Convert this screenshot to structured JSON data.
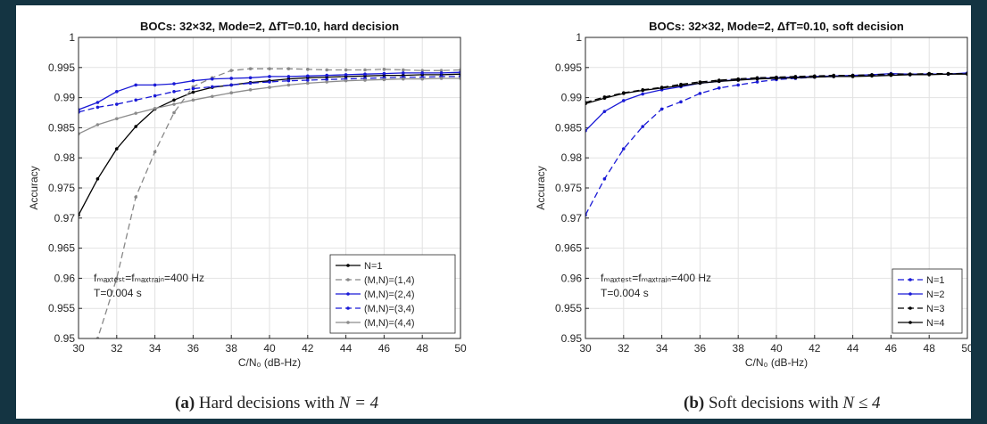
{
  "chart_data": [
    {
      "type": "line",
      "title": "BOCs: 32×32, Mode=2, ΔfT=0.10, hard decision",
      "xlabel": "C/N₀ (dB-Hz)",
      "ylabel": "Accuracy",
      "xlim": [
        30,
        50
      ],
      "ylim": [
        0.95,
        1
      ],
      "xticks": [
        "30",
        "32",
        "34",
        "36",
        "38",
        "40",
        "42",
        "44",
        "46",
        "48",
        "50"
      ],
      "yticks": [
        "0.95",
        "0.955",
        "0.96",
        "0.965",
        "0.97",
        "0.975",
        "0.98",
        "0.985",
        "0.99",
        "0.995",
        "1"
      ],
      "grid": true,
      "legend_position": "bottom-right",
      "annotation_lines": [
        "fₘₐₓₜₑₛₜ=fₘₐₓₜᵣₐᵢₙ=400 Hz",
        "T=0.004 s"
      ],
      "x": [
        30,
        31,
        32,
        33,
        34,
        35,
        36,
        37,
        38,
        39,
        40,
        41,
        42,
        43,
        44,
        45,
        46,
        47,
        48,
        49,
        50
      ],
      "series": [
        {
          "name": "N=1",
          "color": "#000000",
          "dash": "solid",
          "values": [
            0.9705,
            0.9765,
            0.9815,
            0.9852,
            0.9881,
            0.9896,
            0.9909,
            0.9917,
            0.9921,
            0.9925,
            0.9928,
            0.9931,
            0.9933,
            0.9934,
            0.9935,
            0.9936,
            0.9937,
            0.9937,
            0.9938,
            0.9938,
            0.9939
          ]
        },
        {
          "name": "(M,N)=(1,4)",
          "color": "#888888",
          "dash": "dashed",
          "values": [
            0.94,
            0.95,
            0.96,
            0.9735,
            0.981,
            0.9875,
            0.9918,
            0.9933,
            0.9945,
            0.9948,
            0.9948,
            0.9948,
            0.9947,
            0.9946,
            0.9946,
            0.9946,
            0.9947,
            0.9946,
            0.9945,
            0.9945,
            0.9946
          ]
        },
        {
          "name": "(M,N)=(2,4)",
          "color": "#1a1ad6",
          "dash": "solid",
          "values": [
            0.988,
            0.9892,
            0.991,
            0.9921,
            0.9921,
            0.9923,
            0.9928,
            0.9931,
            0.9932,
            0.9933,
            0.9935,
            0.9935,
            0.9936,
            0.9937,
            0.9938,
            0.9939,
            0.994,
            0.9941,
            0.9941,
            0.9941,
            0.9942
          ]
        },
        {
          "name": "(M,N)=(3,4)",
          "color": "#1a1ad6",
          "dash": "dashed",
          "values": [
            0.9876,
            0.9884,
            0.9889,
            0.9896,
            0.9903,
            0.991,
            0.9915,
            0.9918,
            0.9921,
            0.9924,
            0.9926,
            0.9928,
            0.9929,
            0.993,
            0.9931,
            0.9932,
            0.9933,
            0.9934,
            0.9934,
            0.9935,
            0.9935
          ]
        },
        {
          "name": "(M,N)=(4,4)",
          "color": "#8c8c8c",
          "dash": "solid",
          "values": [
            0.984,
            0.9855,
            0.9865,
            0.9874,
            0.9882,
            0.9889,
            0.9896,
            0.9902,
            0.9908,
            0.9913,
            0.9917,
            0.9921,
            0.9924,
            0.9926,
            0.9928,
            0.9929,
            0.993,
            0.9931,
            0.9931,
            0.9932,
            0.9932
          ]
        }
      ]
    },
    {
      "type": "line",
      "title": "BOCs: 32×32, Mode=2, ΔfT=0.10, soft decision",
      "xlabel": "C/N₀ (dB-Hz)",
      "ylabel": "Accuracy",
      "xlim": [
        30,
        50
      ],
      "ylim": [
        0.95,
        1
      ],
      "xticks": [
        "30",
        "32",
        "34",
        "36",
        "38",
        "40",
        "42",
        "44",
        "46",
        "48",
        "50"
      ],
      "yticks": [
        "0.95",
        "0.955",
        "0.96",
        "0.965",
        "0.97",
        "0.975",
        "0.98",
        "0.985",
        "0.99",
        "0.995",
        "1"
      ],
      "grid": true,
      "legend_position": "bottom-right",
      "annotation_lines": [
        "fₘₐₓₜₑₛₜ=fₘₐₓₜᵣₐᵢₙ=400 Hz",
        "T=0.004 s"
      ],
      "x": [
        30,
        31,
        32,
        33,
        34,
        35,
        36,
        37,
        38,
        39,
        40,
        41,
        42,
        43,
        44,
        45,
        46,
        47,
        48,
        49,
        50
      ],
      "series": [
        {
          "name": "N=1",
          "color": "#1a1ad6",
          "dash": "dashed",
          "values": [
            0.9705,
            0.9765,
            0.9815,
            0.9852,
            0.9881,
            0.9893,
            0.9907,
            0.9916,
            0.9921,
            0.9926,
            0.993,
            0.9932,
            0.9934,
            0.9935,
            0.9936,
            0.9937,
            0.9938,
            0.9938,
            0.9939,
            0.9939,
            0.994
          ]
        },
        {
          "name": "N=2",
          "color": "#1a1ad6",
          "dash": "solid",
          "values": [
            0.9845,
            0.9877,
            0.9895,
            0.9906,
            0.9913,
            0.9918,
            0.9924,
            0.9927,
            0.993,
            0.9932,
            0.9933,
            0.9934,
            0.9935,
            0.9936,
            0.9937,
            0.9938,
            0.994,
            0.9939,
            0.9939,
            0.9939,
            0.9941
          ]
        },
        {
          "name": "N=3",
          "color": "#000000",
          "dash": "dashed",
          "values": [
            0.9892,
            0.9901,
            0.9908,
            0.9913,
            0.9917,
            0.9922,
            0.9926,
            0.9929,
            0.9931,
            0.9933,
            0.9934,
            0.9935,
            0.9936,
            0.9937,
            0.9937,
            0.9938,
            0.9939,
            0.9939,
            0.994,
            0.994,
            0.994
          ]
        },
        {
          "name": "N=4",
          "color": "#000000",
          "dash": "solid",
          "values": [
            0.989,
            0.9899,
            0.9907,
            0.9912,
            0.9916,
            0.992,
            0.9924,
            0.9927,
            0.9929,
            0.9931,
            0.9932,
            0.9933,
            0.9934,
            0.9935,
            0.9935,
            0.9936,
            0.9937,
            0.9938,
            0.9938,
            0.9939,
            0.9939
          ]
        }
      ]
    }
  ],
  "captions": [
    {
      "label": "(a)",
      "text": " Hard decisions with ",
      "math": "N = 4"
    },
    {
      "label": "(b)",
      "text": " Soft decisions with ",
      "math": "N ≤ 4"
    }
  ]
}
